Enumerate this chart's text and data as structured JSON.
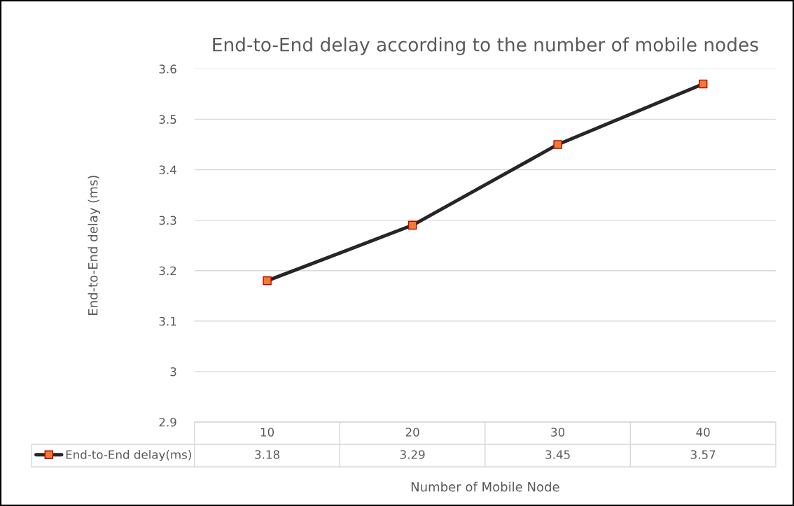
{
  "chart_data": {
    "type": "line",
    "title": "End-to-End delay according to the number of mobile nodes",
    "xlabel": "Number of Mobile Node",
    "ylabel": "End-to-End delay (ms)",
    "categories": [
      "10",
      "20",
      "30",
      "40"
    ],
    "series": [
      {
        "name": "End-to-End delay(ms)",
        "color": "#262626",
        "colors": [
          "#ed7d31",
          "#ed7d31",
          "#ed7d31",
          "#ed7d31"
        ],
        "values": [
          3.18,
          3.29,
          3.45,
          3.57
        ]
      }
    ],
    "ylim": [
      2.9,
      3.6
    ],
    "yticks": [
      {
        "value": 2.9,
        "label": "2.9"
      },
      {
        "value": 3.0,
        "label": "3"
      },
      {
        "value": 3.1,
        "label": "3.1"
      },
      {
        "value": 3.2,
        "label": "3.2"
      },
      {
        "value": 3.3,
        "label": "3.3"
      },
      {
        "value": 3.4,
        "label": "3.4"
      },
      {
        "value": 3.5,
        "label": "3.5"
      },
      {
        "value": 3.6,
        "label": "3.6"
      }
    ],
    "grid": "y",
    "marker": "square",
    "line_style": "solid",
    "legend": "bottom",
    "data_labels": true
  }
}
